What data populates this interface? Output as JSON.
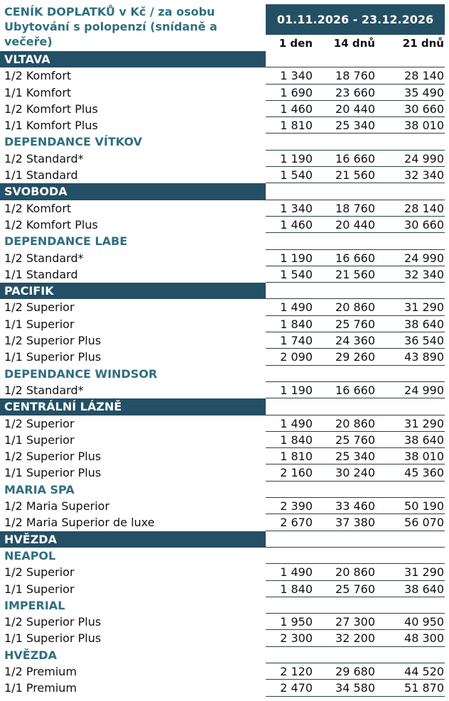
{
  "header": {
    "title_lines": [
      "CENÍK DOPLATKŮ v Kč / za osobu",
      "Ubytování s polopenzí (snídaně a",
      "večeře)"
    ],
    "date_range": "01.11.2026 - 23.12.2026",
    "columns": [
      "1 den",
      "14 dnů",
      "21 dnů"
    ]
  },
  "rows": [
    {
      "type": "section",
      "filled": true,
      "label": "VLTAVA"
    },
    {
      "type": "item",
      "label": "1/2 Komfort",
      "values": [
        "1 340",
        "18 760",
        "28 140"
      ]
    },
    {
      "type": "item",
      "label": "1/1 Komfort",
      "values": [
        "1 690",
        "23 660",
        "35 490"
      ]
    },
    {
      "type": "item",
      "label": "1/2 Komfort Plus",
      "values": [
        "1 460",
        "20 440",
        "30 660"
      ]
    },
    {
      "type": "item",
      "label": "1/1 Komfort Plus",
      "values": [
        "1 810",
        "25 340",
        "38 010"
      ]
    },
    {
      "type": "section",
      "filled": false,
      "label": "DEPENDANCE VÍTKOV"
    },
    {
      "type": "item",
      "label": "1/2 Standard*",
      "values": [
        "1 190",
        "16 660",
        "24 990"
      ]
    },
    {
      "type": "item",
      "label": "1/1 Standard",
      "values": [
        "1 540",
        "21 560",
        "32 340"
      ]
    },
    {
      "type": "section",
      "filled": true,
      "label": "SVOBODA"
    },
    {
      "type": "item",
      "label": "1/2 Komfort",
      "values": [
        "1 340",
        "18 760",
        "28 140"
      ]
    },
    {
      "type": "item",
      "label": "1/2 Komfort Plus",
      "values": [
        "1 460",
        "20 440",
        "30 660"
      ]
    },
    {
      "type": "section",
      "filled": false,
      "label": "DEPENDANCE LABE"
    },
    {
      "type": "item",
      "label": "1/2 Standard*",
      "values": [
        "1 190",
        "16 660",
        "24 990"
      ]
    },
    {
      "type": "item",
      "label": "1/1 Standard",
      "values": [
        "1 540",
        "21 560",
        "32 340"
      ]
    },
    {
      "type": "section",
      "filled": true,
      "label": "PACIFIK"
    },
    {
      "type": "item",
      "label": "1/2 Superior",
      "values": [
        "1 490",
        "20 860",
        "31 290"
      ]
    },
    {
      "type": "item",
      "label": "1/1 Superior",
      "values": [
        "1 840",
        "25 760",
        "38 640"
      ]
    },
    {
      "type": "item",
      "label": "1/2 Superior Plus",
      "values": [
        "1 740",
        "24 360",
        "36 540"
      ]
    },
    {
      "type": "item",
      "label": "1/1 Superior Plus",
      "values": [
        "2 090",
        "29 260",
        "43 890"
      ]
    },
    {
      "type": "section",
      "filled": false,
      "label": "DEPENDANCE WINDSOR"
    },
    {
      "type": "item",
      "label": "1/2 Standard*",
      "values": [
        "1 190",
        "16 660",
        "24 990"
      ]
    },
    {
      "type": "section",
      "filled": true,
      "label": "CENTRÁLNÍ LÁZNĚ"
    },
    {
      "type": "item",
      "label": "1/2 Superior",
      "values": [
        "1 490",
        "20 860",
        "31 290"
      ]
    },
    {
      "type": "item",
      "label": "1/1 Superior",
      "values": [
        "1 840",
        "25 760",
        "38 640"
      ]
    },
    {
      "type": "item",
      "label": "1/2 Superior Plus",
      "values": [
        "1 810",
        "25 340",
        "38 010"
      ]
    },
    {
      "type": "item",
      "label": "1/1 Superior Plus",
      "values": [
        "2 160",
        "30 240",
        "45 360"
      ]
    },
    {
      "type": "section",
      "filled": false,
      "label": "MARIA SPA"
    },
    {
      "type": "item",
      "label": "1/2 Maria Superior",
      "values": [
        "2 390",
        "33 460",
        "50 190"
      ]
    },
    {
      "type": "item",
      "label": "1/2 Maria Superior de luxe",
      "values": [
        "2 670",
        "37 380",
        "56 070"
      ]
    },
    {
      "type": "section",
      "filled": true,
      "label": "HVĚZDA"
    },
    {
      "type": "section",
      "filled": false,
      "label": "NEAPOL"
    },
    {
      "type": "item",
      "label": "1/2 Superior",
      "values": [
        "1 490",
        "20 860",
        "31 290"
      ]
    },
    {
      "type": "item",
      "label": "1/1 Superior",
      "values": [
        "1 840",
        "25 760",
        "38 640"
      ]
    },
    {
      "type": "section",
      "filled": false,
      "label": "IMPERIAL"
    },
    {
      "type": "item",
      "label": "1/2 Superior Plus",
      "values": [
        "1 950",
        "27 300",
        "40 950"
      ]
    },
    {
      "type": "item",
      "label": "1/1 Superior Plus",
      "values": [
        "2 300",
        "32 200",
        "48 300"
      ]
    },
    {
      "type": "section",
      "filled": false,
      "label": "HVĚZDA"
    },
    {
      "type": "item",
      "label": "1/2 Premium",
      "values": [
        "2 120",
        "29 680",
        "44 520"
      ]
    },
    {
      "type": "item",
      "label": "1/1 Premium",
      "values": [
        "2 470",
        "34 580",
        "51 870"
      ]
    }
  ],
  "colors": {
    "header_band": "#244f64",
    "section_text": "#2f6f80"
  }
}
